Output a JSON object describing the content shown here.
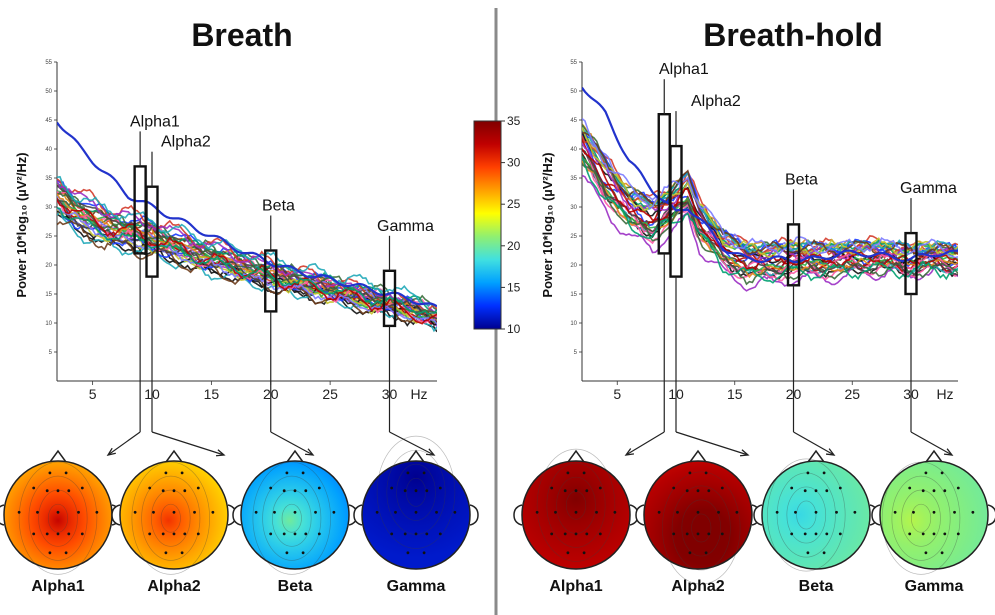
{
  "colors": {
    "divider": "#8a8a8a",
    "colormap": [
      "#00008f",
      "#0030ff",
      "#00a0ff",
      "#40e0e0",
      "#90f070",
      "#ffff00",
      "#ffa000",
      "#ff4000",
      "#c00000",
      "#800000"
    ]
  },
  "colorbar": {
    "min": 10,
    "max": 35,
    "ticks": [
      "35",
      "30",
      "25",
      "20",
      "15",
      "10"
    ]
  },
  "chart_data": [
    {
      "type": "line",
      "title": "Breath",
      "xlabel": "Hz",
      "ylabel": "Power 10*log₁₀ (µV²/Hz)",
      "xlim": [
        2,
        34
      ],
      "ylim": [
        0,
        55
      ],
      "xticks": [
        "5",
        "10",
        "15",
        "20",
        "25",
        "30"
      ],
      "yticks": [
        "5",
        "10",
        "15",
        "20",
        "25",
        "30",
        "35",
        "40",
        "45",
        "50",
        "55"
      ],
      "series_count": 30,
      "x": [
        2,
        4,
        6,
        8,
        10,
        12,
        14,
        16,
        18,
        20,
        22,
        24,
        26,
        28,
        30,
        32,
        34
      ],
      "mean_values": [
        32,
        29,
        27,
        26,
        25,
        23.5,
        22,
        21,
        19.5,
        18.5,
        17.5,
        16.5,
        15.5,
        14.5,
        13.5,
        12.5,
        11
      ],
      "highlight_series": {
        "name": "",
        "values": [
          45,
          40,
          36,
          32,
          30,
          28,
          26,
          24,
          22,
          20.5,
          19,
          18,
          17,
          16,
          15,
          14,
          12.5
        ]
      },
      "bands": [
        {
          "label": "Alpha1",
          "x": 9,
          "y_range": [
            22,
            37
          ]
        },
        {
          "label": "Alpha2",
          "x": 10,
          "y_range": [
            18,
            33.5
          ]
        },
        {
          "label": "Beta",
          "x": 20,
          "y_range": [
            12,
            22.5
          ]
        },
        {
          "label": "Gamma",
          "x": 30,
          "y_range": [
            9.5,
            19
          ]
        }
      ],
      "topomaps": [
        {
          "label": "Alpha1",
          "edge_value": 25,
          "blobs": [
            {
              "v": 32,
              "x": 0.5,
              "y": 0.55
            }
          ]
        },
        {
          "label": "Alpha2",
          "edge_value": 24,
          "blobs": [
            {
              "v": 30,
              "x": 0.45,
              "y": 0.55
            }
          ]
        },
        {
          "label": "Beta",
          "edge_value": 14,
          "blobs": [
            {
              "v": 20,
              "x": 0.45,
              "y": 0.55
            }
          ]
        },
        {
          "label": "Gamma",
          "edge_value": 11.5,
          "blobs": [
            {
              "v": 10,
              "x": 0.5,
              "y": 0.15
            }
          ]
        }
      ]
    },
    {
      "type": "line",
      "title": "Breath-hold",
      "xlabel": "Hz",
      "ylabel": "Power 10*log₁₀ (µV²/Hz)",
      "xlim": [
        2,
        34
      ],
      "ylim": [
        0,
        55
      ],
      "xticks": [
        "5",
        "10",
        "15",
        "20",
        "25",
        "30"
      ],
      "yticks": [
        "5",
        "10",
        "15",
        "20",
        "25",
        "30",
        "35",
        "40",
        "45",
        "50",
        "55"
      ],
      "series_count": 30,
      "x": [
        2,
        4,
        6,
        8,
        10,
        11,
        12,
        14,
        16,
        18,
        20,
        22,
        24,
        26,
        28,
        30,
        32,
        34
      ],
      "mean_values": [
        40,
        34,
        29,
        27,
        30,
        32,
        27,
        22,
        20,
        20,
        20.5,
        20.5,
        20.5,
        21,
        21,
        20.5,
        21,
        20.5
      ],
      "highlight_series": {
        "name": "",
        "values": [
          51,
          46,
          38,
          33,
          29,
          30,
          28,
          23,
          21,
          21,
          21,
          21,
          22,
          22,
          21.5,
          21,
          22,
          22
        ]
      },
      "bands": [
        {
          "label": "Alpha1",
          "x": 9,
          "y_range": [
            22,
            46
          ]
        },
        {
          "label": "Alpha2",
          "x": 10,
          "y_range": [
            18,
            40.5
          ]
        },
        {
          "label": "Beta",
          "x": 20,
          "y_range": [
            16.5,
            27
          ]
        },
        {
          "label": "Gamma",
          "x": 30,
          "y_range": [
            15,
            25.5
          ]
        }
      ],
      "topomaps": [
        {
          "label": "Alpha1",
          "edge_value": 32,
          "blobs": [
            {
              "v": 35,
              "x": 0.5,
              "y": 0.35
            }
          ]
        },
        {
          "label": "Alpha2",
          "edge_value": 32,
          "blobs": [
            {
              "v": 37,
              "x": 0.55,
              "y": 0.7
            }
          ]
        },
        {
          "label": "Beta",
          "edge_value": 20,
          "blobs": [
            {
              "v": 18,
              "x": 0.35,
              "y": 0.5
            }
          ]
        },
        {
          "label": "Gamma",
          "edge_value": 20,
          "blobs": [
            {
              "v": 22,
              "x": 0.3,
              "y": 0.55
            }
          ]
        }
      ]
    }
  ]
}
